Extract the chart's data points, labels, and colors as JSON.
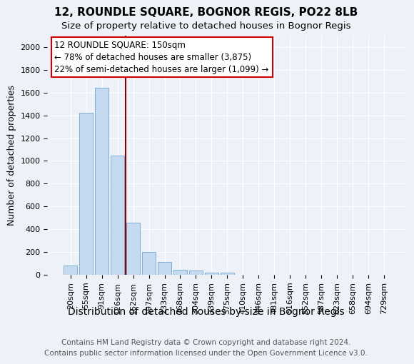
{
  "title": "12, ROUNDLE SQUARE, BOGNOR REGIS, PO22 8LB",
  "subtitle": "Size of property relative to detached houses in Bognor Regis",
  "xlabel": "Distribution of detached houses by size in Bognor Regis",
  "ylabel": "Number of detached properties",
  "categories": [
    "20sqm",
    "55sqm",
    "91sqm",
    "126sqm",
    "162sqm",
    "197sqm",
    "233sqm",
    "268sqm",
    "304sqm",
    "339sqm",
    "375sqm",
    "410sqm",
    "446sqm",
    "481sqm",
    "516sqm",
    "552sqm",
    "587sqm",
    "623sqm",
    "658sqm",
    "694sqm",
    "729sqm"
  ],
  "values": [
    80,
    1420,
    1640,
    1050,
    460,
    200,
    110,
    45,
    35,
    20,
    20,
    0,
    0,
    0,
    0,
    0,
    0,
    0,
    0,
    0,
    0
  ],
  "bar_color": "#c5d9f0",
  "bar_edge_color": "#7bafd4",
  "red_line_index": 4,
  "red_line_color": "#8b0000",
  "annotation_text": "12 ROUNDLE SQUARE: 150sqm\n← 78% of detached houses are smaller (3,875)\n22% of semi-detached houses are larger (1,099) →",
  "annotation_box_color": "#ffffff",
  "annotation_box_edge_color": "#cc0000",
  "ylim": [
    0,
    2100
  ],
  "yticks": [
    0,
    200,
    400,
    600,
    800,
    1000,
    1200,
    1400,
    1600,
    1800,
    2000
  ],
  "footer_line1": "Contains HM Land Registry data © Crown copyright and database right 2024.",
  "footer_line2": "Contains public sector information licensed under the Open Government Licence v3.0.",
  "bg_color": "#eef2f8",
  "plot_bg_color": "#eef2f8",
  "title_fontsize": 11,
  "subtitle_fontsize": 9.5,
  "xlabel_fontsize": 10,
  "ylabel_fontsize": 9,
  "tick_fontsize": 8,
  "annotation_fontsize": 8.5,
  "footer_fontsize": 7.5
}
